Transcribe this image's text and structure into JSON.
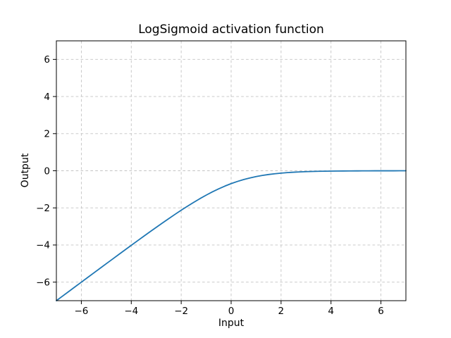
{
  "figure": {
    "background": "#ffffff",
    "frame_color": "#000000"
  },
  "chart_data": {
    "type": "line",
    "title": "LogSigmoid activation function",
    "xlabel": "Input",
    "ylabel": "Output",
    "xlim": [
      -7,
      7
    ],
    "ylim": [
      -7,
      7
    ],
    "xticks": [
      -6,
      -4,
      -2,
      0,
      2,
      4,
      6
    ],
    "yticks": [
      -6,
      -4,
      -2,
      0,
      2,
      4,
      6
    ],
    "grid": true,
    "grid_style": "dashed",
    "grid_color": "#c3c3c3",
    "line_color": "#1f77b4",
    "line_width": 1.8,
    "legend": "none",
    "series": [
      {
        "name": "logsigmoid",
        "x": [
          -7,
          -6.75,
          -6.5,
          -6.25,
          -6,
          -5.75,
          -5.5,
          -5.25,
          -5,
          -4.75,
          -4.5,
          -4.25,
          -4,
          -3.75,
          -3.5,
          -3.25,
          -3,
          -2.75,
          -2.5,
          -2.25,
          -2,
          -1.75,
          -1.5,
          -1.25,
          -1,
          -0.75,
          -0.5,
          -0.25,
          0,
          0.25,
          0.5,
          0.75,
          1,
          1.25,
          1.5,
          1.75,
          2,
          2.25,
          2.5,
          2.75,
          3,
          3.25,
          3.5,
          3.75,
          4,
          4.25,
          4.5,
          4.75,
          5,
          5.25,
          5.5,
          5.75,
          6,
          6.25,
          6.5,
          6.75,
          7
        ],
        "y": [
          -7.0009,
          -6.7512,
          -6.5015,
          -6.2519,
          -6.0025,
          -5.7532,
          -5.5041,
          -5.2552,
          -5.0067,
          -4.7586,
          -4.511,
          -4.2641,
          -4.0181,
          -3.7732,
          -3.5298,
          -3.2881,
          -3.0486,
          -2.8124,
          -2.5789,
          -2.3502,
          -2.1269,
          -1.9103,
          -1.7014,
          -1.5019,
          -1.3133,
          -1.1369,
          -0.9741,
          -0.8259,
          -0.6931,
          -0.576,
          -0.4741,
          -0.3869,
          -0.3133,
          -0.2519,
          -0.2014,
          -0.1602,
          -0.1269,
          -0.1002,
          -0.0789,
          -0.062,
          -0.0486,
          -0.038,
          -0.0297,
          -0.0232,
          -0.0182,
          -0.0142,
          -0.0111,
          -0.0086,
          -0.0067,
          -0.0052,
          -0.0041,
          -0.0032,
          -0.0025,
          -0.0019,
          -0.0015,
          -0.0012,
          -0.0009
        ]
      }
    ]
  }
}
